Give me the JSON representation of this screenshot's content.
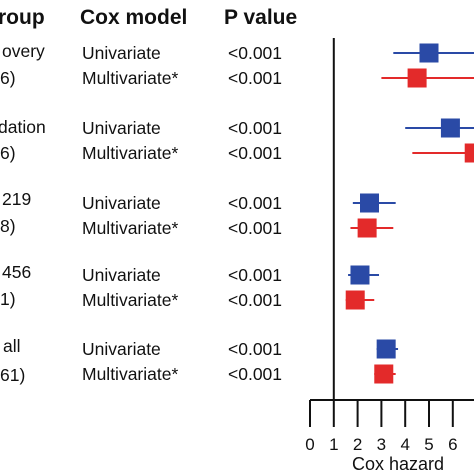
{
  "header": {
    "group": "roup",
    "model": "Cox model",
    "pvalue": "P value"
  },
  "rows": [
    {
      "group_line1": "overy",
      "group_line2": "6)"
    },
    {
      "group_line1": "dation",
      "group_line2": "6)"
    },
    {
      "group_line1": "219",
      "group_line2": "8)"
    },
    {
      "group_line1": "456",
      "group_line2": "1)"
    },
    {
      "group_line1": "all",
      "group_line2": "61)"
    }
  ],
  "chart_data": {
    "type": "forest",
    "xlabel": "Cox hazard",
    "x_ticks": [
      0,
      1,
      2,
      3,
      4,
      5,
      6
    ],
    "xlim": [
      0,
      7
    ],
    "reference_line": 1,
    "series": [
      {
        "name": "Univariate",
        "color": "#2a4aa6"
      },
      {
        "name": "Multivariate*",
        "color": "#e32a2a"
      }
    ],
    "groups": [
      {
        "entries": [
          {
            "model": "Univariate",
            "p": "<0.001",
            "hr": 5.0,
            "lo": 3.5,
            "hi": 7.0
          },
          {
            "model": "Multivariate*",
            "p": "<0.001",
            "hr": 4.5,
            "lo": 3.0,
            "hi": 7.0
          }
        ]
      },
      {
        "entries": [
          {
            "model": "Univariate",
            "p": "<0.001",
            "hr": 5.9,
            "lo": 4.0,
            "hi": 7.0
          },
          {
            "model": "Multivariate*",
            "p": "<0.001",
            "hr": 6.9,
            "lo": 4.3,
            "hi": 7.0
          }
        ]
      },
      {
        "entries": [
          {
            "model": "Univariate",
            "p": "<0.001",
            "hr": 2.5,
            "lo": 1.8,
            "hi": 3.6
          },
          {
            "model": "Multivariate*",
            "p": "<0.001",
            "hr": 2.4,
            "lo": 1.7,
            "hi": 3.5
          }
        ]
      },
      {
        "entries": [
          {
            "model": "Univariate",
            "p": "<0.001",
            "hr": 2.1,
            "lo": 1.6,
            "hi": 2.9
          },
          {
            "model": "Multivariate*",
            "p": "<0.001",
            "hr": 1.9,
            "lo": 1.5,
            "hi": 2.7
          }
        ]
      },
      {
        "entries": [
          {
            "model": "Univariate",
            "p": "<0.001",
            "hr": 3.2,
            "lo": 2.8,
            "hi": 3.7
          },
          {
            "model": "Multivariate*",
            "p": "<0.001",
            "hr": 3.1,
            "lo": 2.7,
            "hi": 3.6
          }
        ]
      }
    ]
  }
}
